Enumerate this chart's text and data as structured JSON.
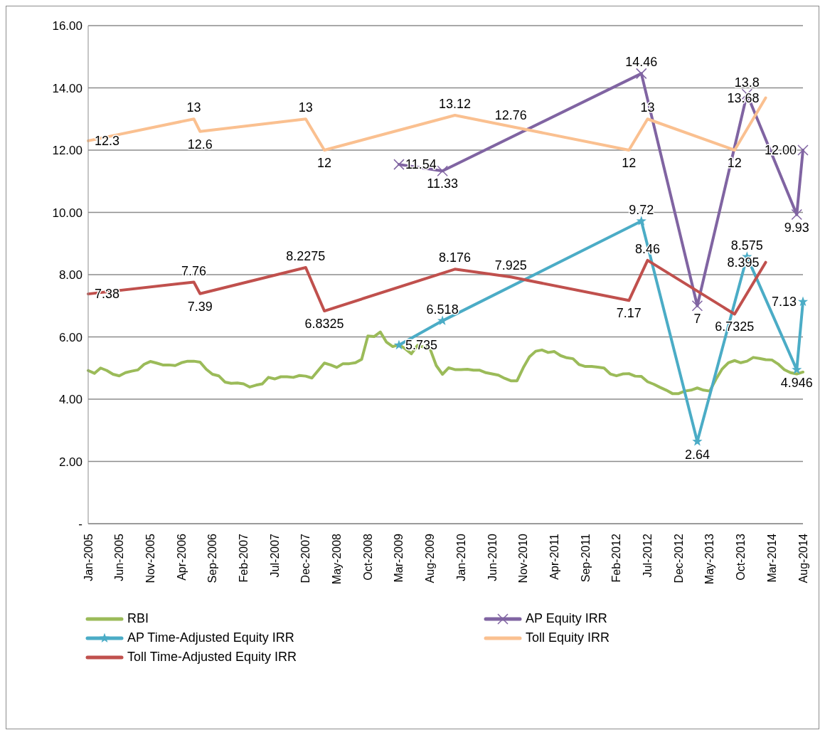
{
  "chart_data": {
    "type": "line",
    "categories": [
      "Jan-2005",
      null,
      null,
      null,
      null,
      "Jun-2005",
      null,
      null,
      null,
      null,
      "Nov-2005",
      null,
      null,
      null,
      null,
      "Apr-2006",
      null,
      null,
      null,
      null,
      "Sep-2006",
      null,
      null,
      null,
      null,
      "Feb-2007",
      null,
      null,
      null,
      null,
      "Jul-2007",
      null,
      null,
      null,
      null,
      "Dec-2007",
      null,
      null,
      null,
      null,
      "May-2008",
      null,
      null,
      null,
      null,
      "Oct-2008",
      null,
      null,
      null,
      null,
      "Mar-2009",
      null,
      null,
      null,
      null,
      "Aug-2009",
      null,
      null,
      null,
      null,
      "Jan-2010",
      null,
      null,
      null,
      null,
      "Jun-2010",
      null,
      null,
      null,
      null,
      "Nov-2010",
      null,
      null,
      null,
      null,
      "Apr-2011",
      null,
      null,
      null,
      null,
      "Sep-2011",
      null,
      null,
      null,
      null,
      "Feb-2012",
      null,
      null,
      null,
      null,
      "Jul-2012",
      null,
      null,
      null,
      null,
      "Dec-2012",
      null,
      null,
      null,
      null,
      "May-2013",
      null,
      null,
      null,
      null,
      "Oct-2013",
      null,
      null,
      null,
      null,
      "Mar-2014",
      null,
      null,
      null,
      null,
      "Aug-2014"
    ],
    "series": [
      {
        "name": "RBI",
        "color": "#9bbb59",
        "marker": "none",
        "values": [
          4.92,
          4.83,
          5.0,
          4.92,
          4.8,
          4.75,
          4.85,
          4.9,
          4.94,
          5.12,
          5.21,
          5.16,
          5.1,
          5.1,
          5.08,
          5.17,
          5.22,
          5.22,
          5.19,
          4.96,
          4.8,
          4.75,
          4.55,
          4.51,
          4.52,
          4.49,
          4.39,
          4.45,
          4.49,
          4.7,
          4.65,
          4.72,
          4.72,
          4.7,
          4.76,
          4.74,
          4.68,
          4.92,
          5.16,
          5.1,
          5.02,
          5.14,
          5.14,
          5.17,
          5.28,
          6.03,
          6.01,
          6.16,
          5.83,
          5.69,
          5.75,
          5.62,
          5.46,
          5.73,
          5.67,
          5.62,
          5.08,
          4.8,
          5.01,
          4.95,
          4.95,
          4.96,
          4.93,
          4.93,
          4.85,
          4.81,
          4.77,
          4.67,
          4.59,
          4.59,
          5.01,
          5.36,
          5.54,
          5.58,
          5.5,
          5.53,
          5.4,
          5.33,
          5.3,
          5.11,
          5.05,
          5.05,
          5.03,
          5.0,
          4.81,
          4.75,
          4.81,
          4.82,
          4.74,
          4.73,
          4.56,
          4.48,
          4.38,
          4.29,
          4.18,
          4.18,
          4.26,
          4.29,
          4.36,
          4.29,
          4.26,
          4.64,
          4.97,
          5.17,
          5.24,
          5.17,
          5.22,
          5.34,
          5.31,
          5.27,
          5.26,
          5.13,
          4.95,
          4.85,
          4.81,
          4.87
        ]
      },
      {
        "name": "AP Equity IRR",
        "color": "#8064a2",
        "marker": "cross",
        "values": [
          null,
          null,
          null,
          null,
          null,
          null,
          null,
          null,
          null,
          null,
          null,
          null,
          null,
          null,
          null,
          null,
          null,
          null,
          null,
          null,
          null,
          null,
          null,
          null,
          null,
          null,
          null,
          null,
          null,
          null,
          null,
          null,
          null,
          null,
          null,
          null,
          null,
          null,
          null,
          null,
          null,
          null,
          null,
          null,
          null,
          null,
          null,
          null,
          null,
          null,
          11.54,
          null,
          null,
          null,
          null,
          null,
          null,
          11.33,
          null,
          null,
          null,
          null,
          null,
          null,
          null,
          null,
          null,
          null,
          null,
          null,
          null,
          null,
          null,
          null,
          null,
          null,
          null,
          null,
          null,
          null,
          null,
          null,
          null,
          null,
          null,
          null,
          null,
          null,
          null,
          14.46,
          null,
          null,
          null,
          null,
          null,
          null,
          null,
          null,
          7,
          null,
          null,
          null,
          null,
          null,
          null,
          null,
          13.8,
          null,
          null,
          null,
          null,
          null,
          null,
          null,
          9.93,
          12
        ],
        "value_labels": [
          null,
          null,
          null,
          null,
          null,
          null,
          null,
          null,
          null,
          null,
          null,
          null,
          null,
          null,
          null,
          null,
          null,
          null,
          null,
          null,
          null,
          null,
          null,
          null,
          null,
          null,
          null,
          null,
          null,
          null,
          null,
          null,
          null,
          null,
          null,
          null,
          null,
          null,
          null,
          null,
          null,
          null,
          null,
          null,
          null,
          null,
          null,
          null,
          null,
          null,
          "11.54",
          null,
          null,
          null,
          null,
          null,
          null,
          "11.33",
          null,
          null,
          null,
          null,
          null,
          null,
          null,
          null,
          null,
          null,
          null,
          null,
          null,
          null,
          null,
          null,
          null,
          null,
          null,
          null,
          null,
          null,
          null,
          null,
          null,
          null,
          null,
          null,
          null,
          null,
          null,
          "14.46",
          null,
          null,
          null,
          null,
          null,
          null,
          null,
          null,
          "7",
          null,
          null,
          null,
          null,
          null,
          null,
          null,
          "13.8",
          null,
          null,
          null,
          null,
          null,
          null,
          null,
          "9.93",
          "12.00"
        ]
      },
      {
        "name": "AP Time-Adjusted Equity IRR",
        "color": "#4bacc6",
        "marker": "star",
        "values": [
          null,
          null,
          null,
          null,
          null,
          null,
          null,
          null,
          null,
          null,
          null,
          null,
          null,
          null,
          null,
          null,
          null,
          null,
          null,
          null,
          null,
          null,
          null,
          null,
          null,
          null,
          null,
          null,
          null,
          null,
          null,
          null,
          null,
          null,
          null,
          null,
          null,
          null,
          null,
          null,
          null,
          null,
          null,
          null,
          null,
          null,
          null,
          null,
          null,
          null,
          5.735,
          null,
          null,
          null,
          null,
          null,
          null,
          6.518,
          null,
          null,
          null,
          null,
          null,
          null,
          null,
          null,
          null,
          null,
          null,
          null,
          null,
          null,
          null,
          null,
          null,
          null,
          null,
          null,
          null,
          null,
          null,
          null,
          null,
          null,
          null,
          null,
          null,
          null,
          null,
          9.72,
          null,
          null,
          null,
          null,
          null,
          null,
          null,
          null,
          2.64,
          null,
          null,
          null,
          null,
          null,
          null,
          null,
          8.575,
          null,
          null,
          null,
          null,
          null,
          null,
          null,
          4.946,
          7.13
        ],
        "value_labels": [
          null,
          null,
          null,
          null,
          null,
          null,
          null,
          null,
          null,
          null,
          null,
          null,
          null,
          null,
          null,
          null,
          null,
          null,
          null,
          null,
          null,
          null,
          null,
          null,
          null,
          null,
          null,
          null,
          null,
          null,
          null,
          null,
          null,
          null,
          null,
          null,
          null,
          null,
          null,
          null,
          null,
          null,
          null,
          null,
          null,
          null,
          null,
          null,
          null,
          null,
          "5.735",
          null,
          null,
          null,
          null,
          null,
          null,
          "6.518",
          null,
          null,
          null,
          null,
          null,
          null,
          null,
          null,
          null,
          null,
          null,
          null,
          null,
          null,
          null,
          null,
          null,
          null,
          null,
          null,
          null,
          null,
          null,
          null,
          null,
          null,
          null,
          null,
          null,
          null,
          null,
          "9.72",
          null,
          null,
          null,
          null,
          null,
          null,
          null,
          null,
          "2.64",
          null,
          null,
          null,
          null,
          null,
          null,
          null,
          "8.575",
          null,
          null,
          null,
          null,
          null,
          null,
          null,
          "4.946",
          "7.13"
        ]
      },
      {
        "name": "Toll Equity IRR",
        "color": "#fac090",
        "marker": "none",
        "values": [
          12.3,
          null,
          null,
          null,
          null,
          null,
          null,
          null,
          null,
          null,
          null,
          null,
          null,
          null,
          null,
          null,
          null,
          13,
          12.6,
          null,
          null,
          null,
          null,
          null,
          null,
          null,
          null,
          null,
          null,
          null,
          null,
          null,
          null,
          null,
          null,
          13,
          null,
          null,
          12,
          null,
          null,
          null,
          null,
          null,
          null,
          null,
          null,
          null,
          null,
          null,
          null,
          null,
          null,
          null,
          null,
          null,
          null,
          null,
          null,
          13.12,
          null,
          null,
          null,
          null,
          null,
          null,
          null,
          null,
          12.76,
          null,
          null,
          null,
          null,
          null,
          null,
          null,
          null,
          null,
          null,
          null,
          null,
          null,
          null,
          null,
          null,
          null,
          null,
          12,
          null,
          null,
          13,
          null,
          null,
          null,
          null,
          null,
          null,
          null,
          null,
          null,
          null,
          null,
          null,
          null,
          12,
          null,
          null,
          null,
          null,
          13.68,
          null,
          null,
          null,
          null,
          null,
          null
        ],
        "value_labels": [
          "12.3",
          null,
          null,
          null,
          null,
          null,
          null,
          null,
          null,
          null,
          null,
          null,
          null,
          null,
          null,
          null,
          null,
          "13",
          "12.6",
          null,
          null,
          null,
          null,
          null,
          null,
          null,
          null,
          null,
          null,
          null,
          null,
          null,
          null,
          null,
          null,
          "13",
          null,
          null,
          "12",
          null,
          null,
          null,
          null,
          null,
          null,
          null,
          null,
          null,
          null,
          null,
          null,
          null,
          null,
          null,
          null,
          null,
          null,
          null,
          null,
          "13.12",
          null,
          null,
          null,
          null,
          null,
          null,
          null,
          null,
          "12.76",
          null,
          null,
          null,
          null,
          null,
          null,
          null,
          null,
          null,
          null,
          null,
          null,
          null,
          null,
          null,
          null,
          null,
          null,
          "12",
          null,
          null,
          "13",
          null,
          null,
          null,
          null,
          null,
          null,
          null,
          null,
          null,
          null,
          null,
          null,
          null,
          "12",
          null,
          null,
          null,
          null,
          "13.68",
          null,
          null,
          null,
          null,
          null,
          null
        ]
      },
      {
        "name": "Toll Time-Adjusted Equity IRR",
        "color": "#c0504d",
        "marker": "none",
        "values": [
          7.38,
          null,
          null,
          null,
          null,
          null,
          null,
          null,
          null,
          null,
          null,
          null,
          null,
          null,
          null,
          null,
          null,
          7.76,
          7.39,
          null,
          null,
          null,
          null,
          null,
          null,
          null,
          null,
          null,
          null,
          null,
          null,
          null,
          null,
          null,
          null,
          8.2275,
          null,
          null,
          6.8325,
          null,
          null,
          null,
          null,
          null,
          null,
          null,
          null,
          null,
          null,
          null,
          null,
          null,
          null,
          null,
          null,
          null,
          null,
          null,
          null,
          8.176,
          null,
          null,
          null,
          null,
          null,
          null,
          null,
          null,
          7.925,
          null,
          null,
          null,
          null,
          null,
          null,
          null,
          null,
          null,
          null,
          null,
          null,
          null,
          null,
          null,
          null,
          null,
          null,
          7.17,
          null,
          null,
          8.46,
          null,
          null,
          null,
          null,
          null,
          null,
          null,
          null,
          null,
          null,
          null,
          null,
          null,
          6.7325,
          null,
          null,
          null,
          null,
          8.395,
          null,
          null,
          null,
          null,
          null,
          null
        ],
        "value_labels": [
          "7.38",
          null,
          null,
          null,
          null,
          null,
          null,
          null,
          null,
          null,
          null,
          null,
          null,
          null,
          null,
          null,
          null,
          "7.76",
          "7.39",
          null,
          null,
          null,
          null,
          null,
          null,
          null,
          null,
          null,
          null,
          null,
          null,
          null,
          null,
          null,
          null,
          "8.2275",
          null,
          null,
          "6.8325",
          null,
          null,
          null,
          null,
          null,
          null,
          null,
          null,
          null,
          null,
          null,
          null,
          null,
          null,
          null,
          null,
          null,
          null,
          null,
          null,
          "8.176",
          null,
          null,
          null,
          null,
          null,
          null,
          null,
          null,
          "7.925",
          null,
          null,
          null,
          null,
          null,
          null,
          null,
          null,
          null,
          null,
          null,
          null,
          null,
          null,
          null,
          null,
          null,
          null,
          "7.17",
          null,
          null,
          "8.46",
          null,
          null,
          null,
          null,
          null,
          null,
          null,
          null,
          null,
          null,
          null,
          null,
          null,
          "6.7325",
          null,
          null,
          null,
          null,
          "8.395",
          null,
          null,
          null,
          null,
          null,
          null
        ]
      }
    ],
    "ylim": [
      0,
      16
    ],
    "yticks": [
      {
        "value": 0,
        "label": "-"
      },
      {
        "value": 2,
        "label": "2.00"
      },
      {
        "value": 4,
        "label": "4.00"
      },
      {
        "value": 6,
        "label": "6.00"
      },
      {
        "value": 8,
        "label": "8.00"
      },
      {
        "value": 10,
        "label": "10.00"
      },
      {
        "value": 12,
        "label": "12.00"
      },
      {
        "value": 14,
        "label": "14.00"
      },
      {
        "value": 16,
        "label": "16.00"
      }
    ],
    "grid": "y",
    "legend": "bottom",
    "line_style": "solid"
  }
}
